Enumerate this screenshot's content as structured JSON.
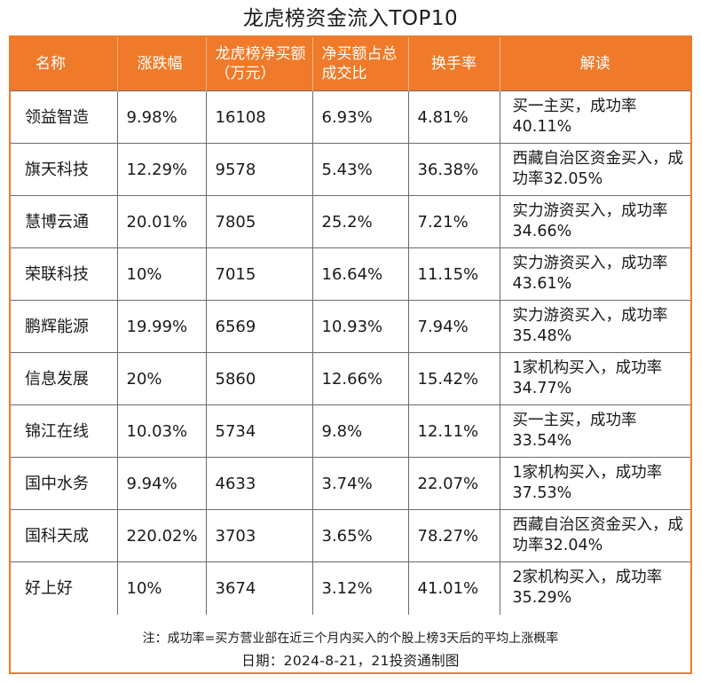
{
  "title": "龙虎榜资金流入TOP10",
  "headers": {
    "name": "名称",
    "change": "涨跌幅",
    "net_buy": "龙虎榜净买额（万元）",
    "ratio": "净买额占总成交比",
    "turnover": "换手率",
    "interp": "解读"
  },
  "rows": [
    {
      "name": "领益智造",
      "change": "9.98%",
      "net_buy": "16108",
      "ratio": "6.93%",
      "turnover": "4.81%",
      "interp": "买一主买，成功率40.11%"
    },
    {
      "name": "旗天科技",
      "change": "12.29%",
      "net_buy": "9578",
      "ratio": "5.43%",
      "turnover": "36.38%",
      "interp": "西藏自治区资金买入，成功率32.05%"
    },
    {
      "name": "慧博云通",
      "change": "20.01%",
      "net_buy": "7805",
      "ratio": "25.2%",
      "turnover": "7.21%",
      "interp": "实力游资买入，成功率34.66%"
    },
    {
      "name": "荣联科技",
      "change": "10%",
      "net_buy": "7015",
      "ratio": "16.64%",
      "turnover": "11.15%",
      "interp": "实力游资买入，成功率43.61%"
    },
    {
      "name": "鹏辉能源",
      "change": "19.99%",
      "net_buy": "6569",
      "ratio": "10.93%",
      "turnover": "7.94%",
      "interp": "实力游资买入，成功率35.48%"
    },
    {
      "name": "信息发展",
      "change": "20%",
      "net_buy": "5860",
      "ratio": "12.66%",
      "turnover": "15.42%",
      "interp": "1家机构买入，成功率34.77%"
    },
    {
      "name": "锦江在线",
      "change": "10.03%",
      "net_buy": "5734",
      "ratio": "9.8%",
      "turnover": "12.11%",
      "interp": "买一主买，成功率33.54%"
    },
    {
      "name": "国中水务",
      "change": "9.94%",
      "net_buy": "4633",
      "ratio": "3.74%",
      "turnover": "22.07%",
      "interp": "1家机构买入，成功率37.53%"
    },
    {
      "name": "国科天成",
      "change": "220.02%",
      "net_buy": "3703",
      "ratio": "3.65%",
      "turnover": "78.27%",
      "interp": "西藏自治区资金买入，成功率32.04%"
    },
    {
      "name": "好上好",
      "change": "10%",
      "net_buy": "3674",
      "ratio": "3.12%",
      "turnover": "41.01%",
      "interp": "2家机构买入，成功率35.29%"
    }
  ],
  "note": "注：成功率=买方营业部在近三个月内买入的个股上榜3天后的平均上涨概率",
  "date_line": "日期：2024-8-21，21投资通制图",
  "colors": {
    "header_bg": "#ef7a2a",
    "border": "#6b6b6b"
  }
}
